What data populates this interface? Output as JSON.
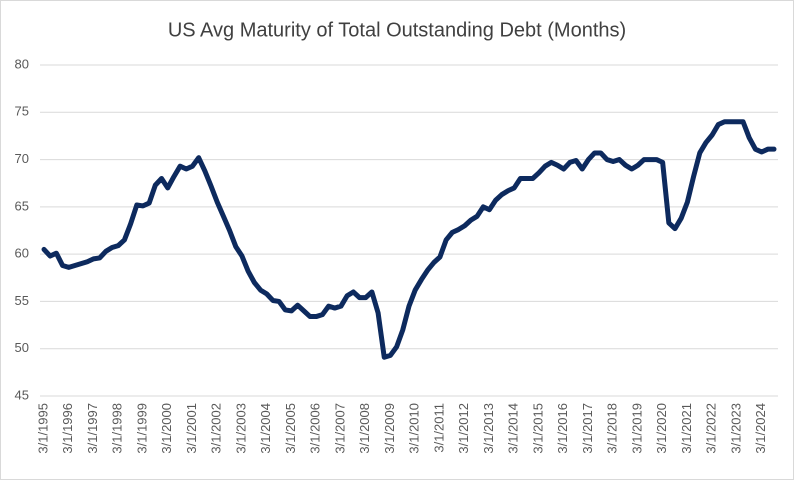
{
  "chart_data": {
    "type": "line",
    "title": "US Avg Maturity of Total Outstanding Debt (Months)",
    "categories": [
      "3/1/1995",
      null,
      null,
      null,
      "3/1/1996",
      null,
      null,
      null,
      "3/1/1997",
      null,
      null,
      null,
      "3/1/1998",
      null,
      null,
      null,
      "3/1/1999",
      null,
      null,
      null,
      "3/1/2000",
      null,
      null,
      null,
      "3/1/2001",
      null,
      null,
      null,
      "3/1/2002",
      null,
      null,
      null,
      "3/1/2003",
      null,
      null,
      null,
      "3/1/2004",
      null,
      null,
      null,
      "3/1/2005",
      null,
      null,
      null,
      "3/1/2006",
      null,
      null,
      null,
      "3/1/2007",
      null,
      null,
      null,
      "3/1/2008",
      null,
      null,
      null,
      "3/1/2009",
      null,
      null,
      null,
      "3/1/2010",
      null,
      null,
      null,
      "3/1/2011",
      null,
      null,
      null,
      "3/1/2012",
      null,
      null,
      null,
      "3/1/2013",
      null,
      null,
      null,
      "3/1/2014",
      null,
      null,
      null,
      "3/1/2015",
      null,
      null,
      null,
      "3/1/2016",
      null,
      null,
      null,
      "3/1/2017",
      null,
      null,
      null,
      "3/1/2018",
      null,
      null,
      null,
      "3/1/2019",
      null,
      null,
      null,
      "3/1/2020",
      null,
      null,
      null,
      "3/1/2021",
      null,
      null,
      null,
      "3/1/2022",
      null,
      null,
      null,
      "3/1/2023",
      null,
      null,
      null,
      "3/1/2024",
      null,
      null
    ],
    "values": [
      60.5,
      59.8,
      60.1,
      58.8,
      58.6,
      58.8,
      59.0,
      59.2,
      59.5,
      59.6,
      60.3,
      60.7,
      60.9,
      61.5,
      63.2,
      65.2,
      65.1,
      65.4,
      67.3,
      68.0,
      67.0,
      68.2,
      69.3,
      69.0,
      69.3,
      70.2,
      68.8,
      67.2,
      65.5,
      64.0,
      62.5,
      60.8,
      59.8,
      58.2,
      57.0,
      56.2,
      55.8,
      55.1,
      55.0,
      54.1,
      54.0,
      54.6,
      54.0,
      53.4,
      53.4,
      53.6,
      54.5,
      54.3,
      54.5,
      55.6,
      56.0,
      55.4,
      55.4,
      56.0,
      53.8,
      49.1,
      49.3,
      50.2,
      52.0,
      54.5,
      56.2,
      57.3,
      58.3,
      59.1,
      59.7,
      61.5,
      62.3,
      62.6,
      63.0,
      63.6,
      64.0,
      65.0,
      64.7,
      65.7,
      66.3,
      66.7,
      67.0,
      68.0,
      68.0,
      68.0,
      68.6,
      69.3,
      69.7,
      69.4,
      69.0,
      69.7,
      69.9,
      69.0,
      70.0,
      70.7,
      70.7,
      70.0,
      69.8,
      70.0,
      69.4,
      69.0,
      69.4,
      70.0,
      70.0,
      70.0,
      69.7,
      63.3,
      62.7,
      63.8,
      65.5,
      68.2,
      70.7,
      71.8,
      72.6,
      73.7,
      74.0,
      74.0,
      74.0,
      74.0,
      72.3,
      71.1,
      70.8,
      71.1,
      71.1
    ],
    "color": "#0d2a5e",
    "ylim": [
      45,
      80
    ],
    "yticks": [
      45,
      50,
      55,
      60,
      65,
      70,
      75,
      80
    ],
    "grid": true
  }
}
